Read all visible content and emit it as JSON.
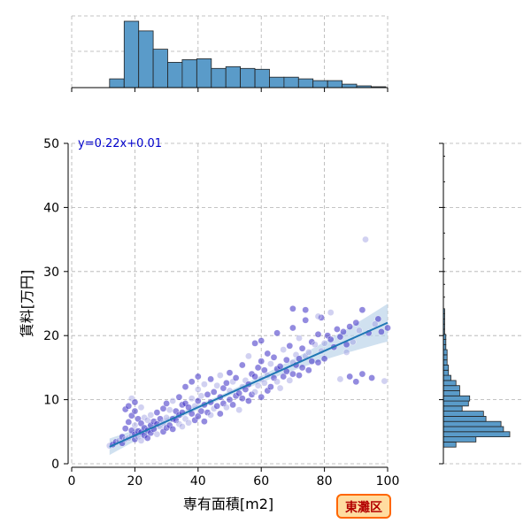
{
  "chart_data": {
    "type": "scatter",
    "xlabel": "専有面積[m2]",
    "ylabel": "賃料[万円]",
    "xlim": [
      0,
      100
    ],
    "ylim": [
      0,
      50
    ],
    "x_ticks": [
      0,
      20,
      40,
      60,
      80,
      100
    ],
    "y_ticks": [
      0,
      10,
      20,
      30,
      40,
      50
    ],
    "grid": true,
    "annotation": "y=0.22x+0.01",
    "badge": "東灘区",
    "regression": {
      "slope": 0.22,
      "intercept": 0.01,
      "x_range": [
        12,
        100
      ]
    },
    "colors": {
      "points": "#3a2bc4",
      "points_light": "#9a9ae0",
      "line": "#1f77b4",
      "band": "#bcd4ea",
      "hist": "#5a9bc9",
      "equation": "#0000cc",
      "badge_fill": "#ffdca0",
      "badge_border": "#ff6600",
      "badge_text": "#b30000"
    },
    "marginal_x_hist": {
      "bin_edges": [
        12,
        16.6,
        21.2,
        25.8,
        30.4,
        35,
        39.6,
        44.2,
        48.8,
        53.4,
        58,
        62.6,
        67.2,
        71.8,
        76.4,
        81,
        85.6,
        90.2,
        94.8,
        99.4
      ],
      "counts": [
        10,
        76,
        65,
        44,
        29,
        32,
        33,
        22,
        24,
        22,
        21,
        12,
        12,
        10,
        8,
        8,
        4,
        2,
        1
      ]
    },
    "marginal_y_hist": {
      "bin_edges": [
        2.6,
        3.4,
        4.2,
        5.0,
        5.8,
        6.6,
        7.4,
        8.2,
        9.0,
        9.8,
        10.6,
        11.4,
        12.2,
        13.0,
        13.8,
        14.6,
        15.4,
        16.2,
        17.0,
        17.8,
        18.6,
        19.4,
        20.2,
        21.0,
        21.8,
        22.6,
        23.4,
        24.2
      ],
      "counts": [
        10,
        26,
        53,
        48,
        46,
        34,
        32,
        15,
        20,
        21,
        13,
        13,
        10,
        6,
        4,
        4,
        3,
        3,
        3,
        2,
        2,
        2,
        1,
        1,
        1,
        1,
        1
      ]
    },
    "points": [
      [
        12,
        2.8
      ],
      [
        13,
        3.0
      ],
      [
        14,
        3.4
      ],
      [
        15,
        3.6
      ],
      [
        16,
        3.2
      ],
      [
        16,
        4.2
      ],
      [
        17,
        3.8
      ],
      [
        17,
        5.5
      ],
      [
        17,
        8.5
      ],
      [
        18,
        4.0
      ],
      [
        18,
        6.5
      ],
      [
        18,
        9.0
      ],
      [
        19,
        4.5
      ],
      [
        19,
        5.2
      ],
      [
        19,
        7.5
      ],
      [
        19,
        10.2
      ],
      [
        20,
        3.8
      ],
      [
        20,
        4.6
      ],
      [
        20,
        6.0
      ],
      [
        20,
        8.2
      ],
      [
        20,
        9.6
      ],
      [
        21,
        4.2
      ],
      [
        21,
        5.1
      ],
      [
        21,
        7.0
      ],
      [
        22,
        3.6
      ],
      [
        22,
        4.9
      ],
      [
        22,
        6.3
      ],
      [
        22,
        8.8
      ],
      [
        23,
        4.4
      ],
      [
        23,
        5.6
      ],
      [
        23,
        7.2
      ],
      [
        24,
        4.0
      ],
      [
        24,
        5.2
      ],
      [
        24,
        6.8
      ],
      [
        25,
        4.8
      ],
      [
        25,
        6.0
      ],
      [
        25,
        7.6
      ],
      [
        26,
        5.4
      ],
      [
        26,
        6.6
      ],
      [
        27,
        4.6
      ],
      [
        27,
        6.2
      ],
      [
        27,
        8.0
      ],
      [
        28,
        5.8
      ],
      [
        28,
        7.0
      ],
      [
        29,
        5.0
      ],
      [
        29,
        6.4
      ],
      [
        29,
        8.6
      ],
      [
        30,
        5.6
      ],
      [
        30,
        7.2
      ],
      [
        30,
        9.4
      ],
      [
        31,
        6.0
      ],
      [
        31,
        8.4
      ],
      [
        32,
        5.4
      ],
      [
        32,
        7.0
      ],
      [
        32,
        9.8
      ],
      [
        33,
        6.8
      ],
      [
        33,
        8.2
      ],
      [
        34,
        6.2
      ],
      [
        34,
        7.6
      ],
      [
        34,
        10.4
      ],
      [
        35,
        5.8
      ],
      [
        35,
        8.0
      ],
      [
        35,
        9.2
      ],
      [
        36,
        7.0
      ],
      [
        36,
        9.4
      ],
      [
        36,
        12.0
      ],
      [
        37,
        6.4
      ],
      [
        37,
        8.8
      ],
      [
        38,
        7.8
      ],
      [
        38,
        10.2
      ],
      [
        38,
        12.8
      ],
      [
        39,
        6.8
      ],
      [
        39,
        9.0
      ],
      [
        40,
        7.4
      ],
      [
        40,
        9.8
      ],
      [
        40,
        11.6
      ],
      [
        40,
        13.6
      ],
      [
        41,
        8.2
      ],
      [
        41,
        10.6
      ],
      [
        42,
        6.6
      ],
      [
        42,
        9.2
      ],
      [
        42,
        12.4
      ],
      [
        43,
        8.0
      ],
      [
        43,
        10.8
      ],
      [
        44,
        7.6
      ],
      [
        44,
        9.6
      ],
      [
        44,
        13.2
      ],
      [
        45,
        8.6
      ],
      [
        45,
        11.2
      ],
      [
        46,
        9.0
      ],
      [
        46,
        12.2
      ],
      [
        47,
        7.8
      ],
      [
        47,
        10.4
      ],
      [
        47,
        13.8
      ],
      [
        48,
        9.4
      ],
      [
        48,
        11.8
      ],
      [
        49,
        8.8
      ],
      [
        49,
        12.6
      ],
      [
        50,
        10.0
      ],
      [
        50,
        11.4
      ],
      [
        50,
        14.2
      ],
      [
        51,
        9.2
      ],
      [
        51,
        12.8
      ],
      [
        52,
        10.6
      ],
      [
        52,
        13.4
      ],
      [
        53,
        8.4
      ],
      [
        53,
        11.0
      ],
      [
        54,
        10.2
      ],
      [
        54,
        12.0
      ],
      [
        54,
        15.4
      ],
      [
        55,
        11.6
      ],
      [
        55,
        13.0
      ],
      [
        56,
        9.8
      ],
      [
        56,
        12.4
      ],
      [
        56,
        16.8
      ],
      [
        57,
        10.8
      ],
      [
        57,
        14.0
      ],
      [
        58,
        11.2
      ],
      [
        58,
        13.6
      ],
      [
        58,
        18.8
      ],
      [
        59,
        12.2
      ],
      [
        59,
        15.0
      ],
      [
        60,
        10.4
      ],
      [
        60,
        13.2
      ],
      [
        60,
        16.0
      ],
      [
        60,
        19.2
      ],
      [
        61,
        12.6
      ],
      [
        61,
        14.6
      ],
      [
        62,
        11.4
      ],
      [
        62,
        13.8
      ],
      [
        62,
        17.2
      ],
      [
        63,
        12.0
      ],
      [
        63,
        15.6
      ],
      [
        64,
        13.4
      ],
      [
        64,
        16.6
      ],
      [
        65,
        12.8
      ],
      [
        65,
        14.8
      ],
      [
        65,
        20.4
      ],
      [
        66,
        11.8
      ],
      [
        66,
        15.2
      ],
      [
        67,
        13.6
      ],
      [
        67,
        17.8
      ],
      [
        68,
        14.4
      ],
      [
        68,
        16.2
      ],
      [
        69,
        13.0
      ],
      [
        69,
        18.4
      ],
      [
        70,
        14.0
      ],
      [
        70,
        15.8
      ],
      [
        70,
        21.2
      ],
      [
        71,
        15.4
      ],
      [
        71,
        17.0
      ],
      [
        72,
        13.8
      ],
      [
        72,
        16.4
      ],
      [
        72,
        19.6
      ],
      [
        73,
        15.0
      ],
      [
        73,
        18.0
      ],
      [
        74,
        16.8
      ],
      [
        74,
        22.4
      ],
      [
        75,
        14.6
      ],
      [
        75,
        17.4
      ],
      [
        76,
        16.0
      ],
      [
        76,
        19.0
      ],
      [
        77,
        18.6
      ],
      [
        78,
        15.8
      ],
      [
        78,
        20.2
      ],
      [
        79,
        17.6
      ],
      [
        79,
        22.8
      ],
      [
        80,
        16.4
      ],
      [
        80,
        18.8
      ],
      [
        81,
        20.0
      ],
      [
        82,
        19.4
      ],
      [
        82,
        23.6
      ],
      [
        83,
        18.2
      ],
      [
        84,
        21.0
      ],
      [
        85,
        13.2
      ],
      [
        85,
        19.8
      ],
      [
        86,
        20.6
      ],
      [
        87,
        17.4
      ],
      [
        88,
        21.4
      ],
      [
        88,
        13.6
      ],
      [
        89,
        19.0
      ],
      [
        90,
        22.0
      ],
      [
        90,
        12.8
      ],
      [
        91,
        20.8
      ],
      [
        92,
        14.0
      ],
      [
        92,
        24.0
      ],
      [
        93,
        35.0
      ],
      [
        94,
        20.4
      ],
      [
        95,
        13.4
      ],
      [
        96,
        21.8
      ],
      [
        97,
        22.6
      ],
      [
        98,
        20.6
      ],
      [
        99,
        12.9
      ],
      [
        100,
        21.2
      ],
      [
        74,
        24.0
      ],
      [
        78,
        23.0
      ],
      [
        87,
        18.6
      ],
      [
        70,
        24.2
      ]
    ]
  }
}
